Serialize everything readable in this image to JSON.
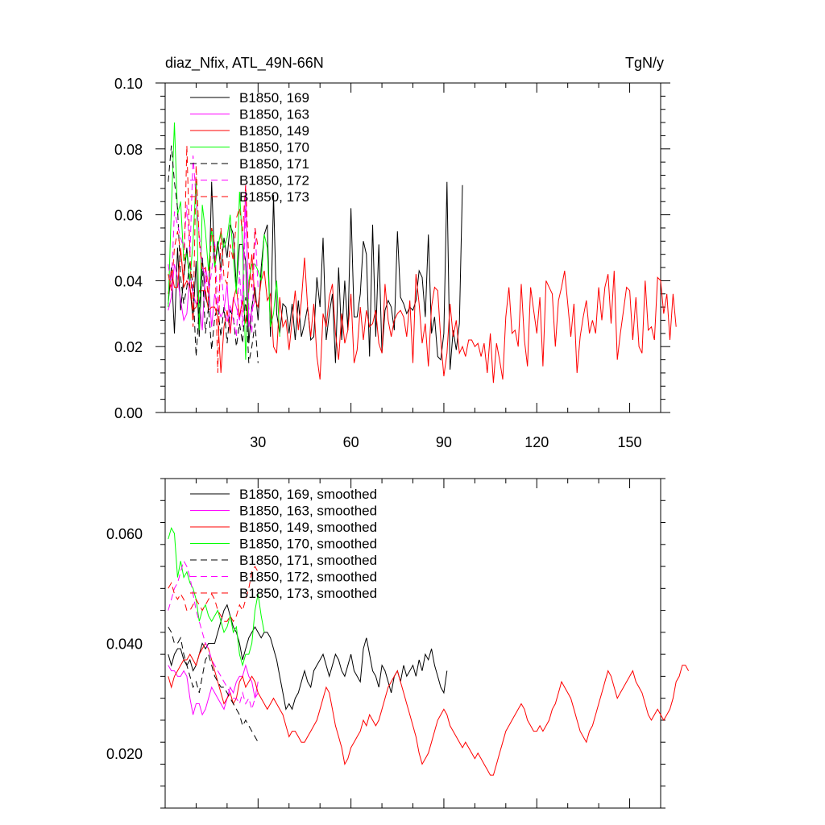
{
  "chart_data": [
    {
      "type": "line",
      "title": "diaz_Nfix, ATL_49N-66N",
      "units": "TgN/y",
      "xlim": [
        0,
        160
      ],
      "ylim": [
        0.0,
        0.1
      ],
      "xticks": [
        30,
        60,
        90,
        120,
        150
      ],
      "xticklabels": [
        "30",
        "60",
        "90",
        "120",
        "150"
      ],
      "yticks": [
        0.0,
        0.02,
        0.04,
        0.06,
        0.08,
        0.1
      ],
      "yticklabels": [
        "0.00",
        "0.02",
        "0.04",
        "0.06",
        "0.08",
        "0.10"
      ],
      "legend": "top-left",
      "series": [
        {
          "name": "B1850, 169",
          "color": "#000000",
          "dash": "solid",
          "x0": 1,
          "values": [
            0.033,
            0.044,
            0.024,
            0.05,
            0.031,
            0.041,
            0.05,
            0.038,
            0.028,
            0.046,
            0.023,
            0.047,
            0.035,
            0.032,
            0.07,
            0.044,
            0.052,
            0.043,
            0.053,
            0.047,
            0.057,
            0.054,
            0.038,
            0.051,
            0.051,
            0.046,
            0.021,
            0.032,
            0.038,
            0.028,
            0.044,
            0.054,
            0.057,
            0.023,
            0.066,
            0.03,
            0.024,
            0.033,
            0.032,
            0.024,
            0.033,
            0.022,
            0.034,
            0.023,
            0.027,
            0.032,
            0.022,
            0.023,
            0.041,
            0.032,
            0.053,
            0.022,
            0.03,
            0.036,
            0.015,
            0.044,
            0.022,
            0.04,
            0.025,
            0.062,
            0.029,
            0.029,
            0.036,
            0.052,
            0.048,
            0.017,
            0.057,
            0.023,
            0.051,
            0.018,
            0.031,
            0.034,
            0.032,
            0.025,
            0.055,
            0.035,
            0.033,
            0.03,
            0.032,
            0.031,
            0.034,
            0.043,
            0.041,
            0.029,
            0.054,
            0.024,
            0.029,
            0.017,
            0.016,
            0.024,
            0.07,
            0.013,
            0.025,
            0.019,
            0.027,
            0.069
          ]
        },
        {
          "name": "B1850, 163",
          "color": "#ff00ff",
          "dash": "solid",
          "x0": 1,
          "values": [
            0.031,
            0.035,
            0.045,
            0.041,
            0.034,
            0.028,
            0.03,
            0.042,
            0.036,
            0.033,
            0.034,
            0.025,
            0.044,
            0.039,
            0.026,
            0.036,
            0.032,
            0.029,
            0.031,
            0.039,
            0.024,
            0.035,
            0.032,
            0.028,
            0.036,
            0.069,
            0.026,
            0.031,
            0.034
          ]
        },
        {
          "name": "B1850, 149",
          "color": "#ff0000",
          "dash": "solid",
          "x0": 1,
          "values": [
            0.036,
            0.043,
            0.038,
            0.038,
            0.05,
            0.038,
            0.04,
            0.038,
            0.031,
            0.032,
            0.037,
            0.037,
            0.037,
            0.031,
            0.032,
            0.032,
            0.029,
            0.012,
            0.026,
            0.031,
            0.024,
            0.034,
            0.038,
            0.029,
            0.034,
            0.027,
            0.037,
            0.048,
            0.034,
            0.032,
            0.04,
            0.043,
            0.034,
            0.036,
            0.02,
            0.018,
            0.035,
            0.026,
            0.028,
            0.019,
            0.028,
            0.037,
            0.025,
            0.034,
            0.047,
            0.032,
            0.023,
            0.033,
            0.017,
            0.01,
            0.03,
            0.026,
            0.035,
            0.039,
            0.024,
            0.016,
            0.03,
            0.021,
            0.025,
            0.036,
            0.015,
            0.019,
            0.032,
            0.022,
            0.031,
            0.026,
            0.027,
            0.031,
            0.021,
            0.018,
            0.039,
            0.028,
            0.023,
            0.028,
            0.03,
            0.031,
            0.029,
            0.023,
            0.034,
            0.015,
            0.042,
            0.033,
            0.021,
            0.027,
            0.014,
            0.032,
            0.038,
            0.037,
            0.022,
            0.011,
            0.018,
            0.033,
            0.023,
            0.028,
            0.018,
            0.02,
            0.017,
            0.022,
            0.022,
            0.02,
            0.021,
            0.017,
            0.021,
            0.012,
            0.024,
            0.009,
            0.021,
            0.016,
            0.01,
            0.029,
            0.038,
            0.024,
            0.025,
            0.02,
            0.039,
            0.022,
            0.014,
            0.038,
            0.031,
            0.024,
            0.035,
            0.014,
            0.04,
            0.038,
            0.036,
            0.02,
            0.034,
            0.038,
            0.043,
            0.033,
            0.023,
            0.033,
            0.012,
            0.023,
            0.029,
            0.034,
            0.024,
            0.028,
            0.024,
            0.038,
            0.028,
            0.038,
            0.042,
            0.027,
            0.043,
            0.016,
            0.024,
            0.031,
            0.038,
            0.037,
            0.022,
            0.035,
            0.02,
            0.018,
            0.04,
            0.025,
            0.026,
            0.022,
            0.041,
            0.04,
            0.03,
            0.036,
            0.022,
            0.036,
            0.026
          ]
        },
        {
          "name": "B1850, 170",
          "color": "#00ff00",
          "dash": "solid",
          "x0": 1,
          "values": [
            0.032,
            0.062,
            0.088,
            0.06,
            0.064,
            0.046,
            0.048,
            0.04,
            0.052,
            0.071,
            0.025,
            0.063,
            0.055,
            0.043,
            0.056,
            0.044,
            0.05,
            0.055,
            0.05,
            0.053,
            0.06,
            0.047,
            0.036,
            0.067,
            0.051,
            0.016,
            0.04,
            0.045,
            0.045,
            0.043,
            0.04,
            0.054,
            0.05,
            0.026,
            0.03,
            0.04,
            0.023
          ]
        },
        {
          "name": "B1850, 171",
          "color": "#000000",
          "dash": "dash",
          "x0": 1,
          "values": [
            0.07,
            0.081,
            0.07,
            0.062,
            0.041,
            0.033,
            0.038,
            0.046,
            0.038,
            0.017,
            0.032,
            0.043,
            0.024,
            0.032,
            0.019,
            0.029,
            0.032,
            0.023,
            0.032,
            0.021,
            0.031,
            0.029,
            0.02,
            0.027,
            0.021,
            0.035,
            0.015,
            0.02,
            0.027,
            0.015
          ]
        },
        {
          "name": "B1850, 172",
          "color": "#ff00ff",
          "dash": "dash",
          "x0": 1,
          "values": [
            0.045,
            0.038,
            0.061,
            0.057,
            0.053,
            0.05,
            0.063,
            0.048,
            0.078,
            0.065,
            0.054,
            0.045,
            0.04,
            0.036,
            0.043,
            0.052,
            0.031,
            0.044,
            0.033,
            0.027,
            0.033,
            0.028,
            0.023,
            0.043,
            0.026,
            0.062,
            0.032,
            0.024,
            0.056,
            0.038
          ]
        },
        {
          "name": "B1850, 173",
          "color": "#ff0000",
          "dash": "dash",
          "x0": 1,
          "values": [
            0.042,
            0.037,
            0.05,
            0.055,
            0.049,
            0.04,
            0.081,
            0.048,
            0.026,
            0.075,
            0.052,
            0.043,
            0.044,
            0.034,
            0.056,
            0.051,
            0.012,
            0.056,
            0.041,
            0.039,
            0.051,
            0.046,
            0.059,
            0.062,
            0.055,
            0.069,
            0.046,
            0.038,
            0.056,
            0.05
          ]
        }
      ]
    },
    {
      "type": "line",
      "title": "",
      "xlim": [
        0,
        160
      ],
      "ylim": [
        0.01,
        0.07
      ],
      "xticks": [
        30,
        60,
        90,
        120,
        150
      ],
      "xticklabels": [],
      "yticks": [
        0.02,
        0.04,
        0.06
      ],
      "yticklabels": [
        "0.020",
        "0.040",
        "0.060"
      ],
      "legend": "top-left",
      "series": [
        {
          "name": "B1850, 169, smoothed",
          "color": "#000000",
          "dash": "solid",
          "x0": 1,
          "values": [
            0.038,
            0.036,
            0.038,
            0.039,
            0.039,
            0.037,
            0.036,
            0.037,
            0.035,
            0.036,
            0.038,
            0.04,
            0.039,
            0.04,
            0.04,
            0.04,
            0.042,
            0.044,
            0.046,
            0.047,
            0.045,
            0.043,
            0.042,
            0.04,
            0.037,
            0.039,
            0.041,
            0.042,
            0.043,
            0.042,
            0.041,
            0.042,
            0.042,
            0.041,
            0.039,
            0.037,
            0.034,
            0.031,
            0.028,
            0.029,
            0.028,
            0.03,
            0.031,
            0.033,
            0.035,
            0.033,
            0.032,
            0.035,
            0.036,
            0.037,
            0.038,
            0.036,
            0.034,
            0.036,
            0.038,
            0.037,
            0.035,
            0.034,
            0.036,
            0.038,
            0.035,
            0.034,
            0.033,
            0.039,
            0.041,
            0.038,
            0.035,
            0.034,
            0.032,
            0.036,
            0.035,
            0.033,
            0.031,
            0.034,
            0.035,
            0.033,
            0.036,
            0.034,
            0.035,
            0.036,
            0.034,
            0.037,
            0.035,
            0.038,
            0.037,
            0.039,
            0.036,
            0.034,
            0.032,
            0.031,
            0.035
          ]
        },
        {
          "name": "B1850, 163, smoothed",
          "color": "#ff00ff",
          "dash": "solid",
          "x0": 1,
          "values": [
            0.036,
            0.035,
            0.035,
            0.034,
            0.034,
            0.035,
            0.034,
            0.03,
            0.027,
            0.029,
            0.029,
            0.027,
            0.028,
            0.03,
            0.032,
            0.031,
            0.03,
            0.029,
            0.028,
            0.03,
            0.032,
            0.031,
            0.033,
            0.034,
            0.034,
            0.036,
            0.034,
            0.033,
            0.03,
            0.033
          ]
        },
        {
          "name": "B1850, 149, smoothed",
          "color": "#ff0000",
          "dash": "solid",
          "x0": 1,
          "values": [
            0.034,
            0.032,
            0.034,
            0.035,
            0.036,
            0.037,
            0.037,
            0.038,
            0.037,
            0.036,
            0.038,
            0.039,
            0.04,
            0.039,
            0.037,
            0.035,
            0.033,
            0.031,
            0.029,
            0.03,
            0.031,
            0.029,
            0.03,
            0.033,
            0.034,
            0.032,
            0.033,
            0.034,
            0.033,
            0.031,
            0.03,
            0.029,
            0.028,
            0.029,
            0.03,
            0.029,
            0.028,
            0.027,
            0.025,
            0.023,
            0.024,
            0.024,
            0.023,
            0.022,
            0.022,
            0.023,
            0.024,
            0.025,
            0.026,
            0.028,
            0.03,
            0.032,
            0.031,
            0.028,
            0.025,
            0.023,
            0.021,
            0.018,
            0.019,
            0.021,
            0.022,
            0.023,
            0.024,
            0.026,
            0.025,
            0.027,
            0.026,
            0.025,
            0.026,
            0.028,
            0.03,
            0.032,
            0.033,
            0.034,
            0.035,
            0.033,
            0.031,
            0.029,
            0.027,
            0.025,
            0.023,
            0.02,
            0.018,
            0.019,
            0.02,
            0.022,
            0.024,
            0.026,
            0.027,
            0.028,
            0.027,
            0.025,
            0.024,
            0.023,
            0.022,
            0.021,
            0.022,
            0.021,
            0.02,
            0.019,
            0.02,
            0.019,
            0.018,
            0.017,
            0.016,
            0.016,
            0.018,
            0.02,
            0.022,
            0.024,
            0.025,
            0.026,
            0.027,
            0.028,
            0.029,
            0.028,
            0.026,
            0.025,
            0.024,
            0.024,
            0.025,
            0.024,
            0.025,
            0.026,
            0.028,
            0.029,
            0.031,
            0.033,
            0.032,
            0.031,
            0.03,
            0.028,
            0.026,
            0.024,
            0.023,
            0.022,
            0.024,
            0.025,
            0.027,
            0.029,
            0.031,
            0.033,
            0.035,
            0.034,
            0.032,
            0.03,
            0.031,
            0.032,
            0.033,
            0.034,
            0.035,
            0.033,
            0.032,
            0.031,
            0.029,
            0.027,
            0.026,
            0.027,
            0.028,
            0.027,
            0.026,
            0.027,
            0.028,
            0.03,
            0.033,
            0.034,
            0.036,
            0.036,
            0.035
          ]
        },
        {
          "name": "B1850, 170, smoothed",
          "color": "#00ff00",
          "dash": "solid",
          "x0": 1,
          "values": [
            0.059,
            0.061,
            0.06,
            0.052,
            0.055,
            0.052,
            0.053,
            0.051,
            0.05,
            0.048,
            0.044,
            0.046,
            0.047,
            0.045,
            0.044,
            0.045,
            0.046,
            0.044,
            0.042,
            0.043,
            0.045,
            0.042,
            0.043,
            0.038,
            0.036,
            0.038,
            0.038,
            0.04,
            0.046,
            0.049,
            0.045,
            0.042
          ]
        },
        {
          "name": "B1850, 171, smoothed",
          "color": "#000000",
          "dash": "dash",
          "x0": 1,
          "values": [
            0.043,
            0.042,
            0.04,
            0.04,
            0.041,
            0.038,
            0.036,
            0.034,
            0.032,
            0.033,
            0.031,
            0.034,
            0.037,
            0.038,
            0.036,
            0.034,
            0.033,
            0.032,
            0.032,
            0.031,
            0.03,
            0.029,
            0.028,
            0.027,
            0.025,
            0.026,
            0.025,
            0.024,
            0.023,
            0.022
          ]
        },
        {
          "name": "B1850, 172, smoothed",
          "color": "#ff00ff",
          "dash": "dash",
          "x0": 1,
          "values": [
            0.046,
            0.048,
            0.05,
            0.051,
            0.053,
            0.055,
            0.054,
            0.052,
            0.049,
            0.046,
            0.044,
            0.042,
            0.04,
            0.039,
            0.037,
            0.036,
            0.035,
            0.034,
            0.033,
            0.032,
            0.031,
            0.03,
            0.03,
            0.029,
            0.031,
            0.029,
            0.03,
            0.028,
            0.03,
            0.031
          ]
        },
        {
          "name": "B1850, 173, smoothed",
          "color": "#ff0000",
          "dash": "dash",
          "x0": 1,
          "values": [
            0.05,
            0.051,
            0.049,
            0.048,
            0.049,
            0.048,
            0.046,
            0.046,
            0.047,
            0.048,
            0.047,
            0.046,
            0.047,
            0.048,
            0.049,
            0.048,
            0.046,
            0.045,
            0.044,
            0.044,
            0.045,
            0.044,
            0.045,
            0.047,
            0.046,
            0.048,
            0.05,
            0.053,
            0.054,
            0.053
          ]
        }
      ]
    }
  ]
}
